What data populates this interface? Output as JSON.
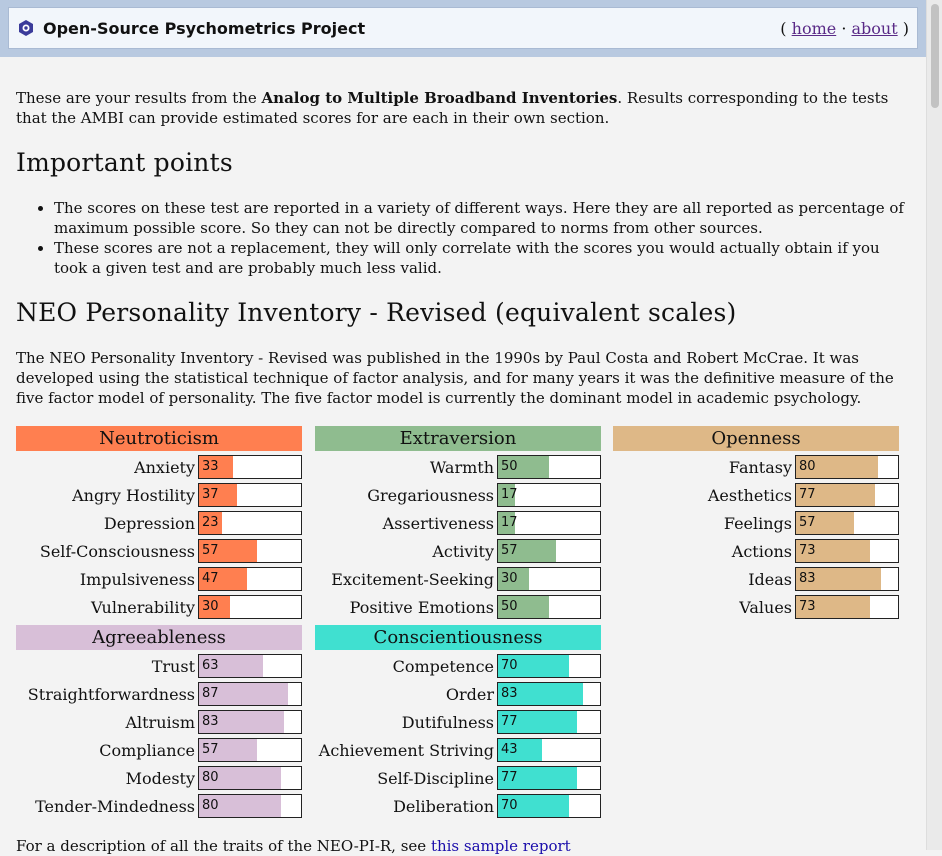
{
  "header": {
    "site_title": "Open-Source Psychometrics Project",
    "nav_open": "(",
    "nav_home": "home",
    "nav_sep": "·",
    "nav_about": "about",
    "nav_close": ")"
  },
  "intro": {
    "pre": "These are your results from the ",
    "bold": "Analog to Multiple Broadband Inventories",
    "post": ". Results corresponding to the tests that the AMBI can provide estimated scores for are each in their own section."
  },
  "important": {
    "heading": "Important points",
    "points": [
      "The scores on these test are reported in a variety of different ways. Here they are all reported as percentage of maximum possible score. So they can not be directly compared to norms from other sources.",
      "These scores are not a replacement, they will only correlate with the scores you would actually obtain if you took a given test and are probably much less valid."
    ]
  },
  "neo": {
    "heading": "NEO Personality Inventory - Revised (equivalent scales)",
    "description": "The NEO Personality Inventory - Revised was published in the 1990s by Paul Costa and Robert McCrae. It was developed using the statistical technique of factor analysis, and for many years it was the definitive measure of the five factor model of personality. The five factor model is currently the dominant model in academic psychology."
  },
  "panels": [
    {
      "name": "Neutroticism",
      "color": "#ff7f50",
      "facets": [
        {
          "label": "Anxiety",
          "value": 33
        },
        {
          "label": "Angry Hostility",
          "value": 37
        },
        {
          "label": "Depression",
          "value": 23
        },
        {
          "label": "Self-Consciousness",
          "value": 57
        },
        {
          "label": "Impulsiveness",
          "value": 47
        },
        {
          "label": "Vulnerability",
          "value": 30
        }
      ]
    },
    {
      "name": "Extraversion",
      "color": "#8fbc8f",
      "facets": [
        {
          "label": "Warmth",
          "value": 50
        },
        {
          "label": "Gregariousness",
          "value": 17
        },
        {
          "label": "Assertiveness",
          "value": 17
        },
        {
          "label": "Activity",
          "value": 57
        },
        {
          "label": "Excitement-Seeking",
          "value": 30
        },
        {
          "label": "Positive Emotions",
          "value": 50
        }
      ]
    },
    {
      "name": "Openness",
      "color": "#deb887",
      "facets": [
        {
          "label": "Fantasy",
          "value": 80
        },
        {
          "label": "Aesthetics",
          "value": 77
        },
        {
          "label": "Feelings",
          "value": 57
        },
        {
          "label": "Actions",
          "value": 73
        },
        {
          "label": "Ideas",
          "value": 83
        },
        {
          "label": "Values",
          "value": 73
        }
      ]
    },
    {
      "name": "Agreeableness",
      "color": "#d8bfd8",
      "facets": [
        {
          "label": "Trust",
          "value": 63
        },
        {
          "label": "Straightforwardness",
          "value": 87
        },
        {
          "label": "Altruism",
          "value": 83
        },
        {
          "label": "Compliance",
          "value": 57
        },
        {
          "label": "Modesty",
          "value": 80
        },
        {
          "label": "Tender-Mindedness",
          "value": 80
        }
      ]
    },
    {
      "name": "Conscientiousness",
      "color": "#40e0d0",
      "facets": [
        {
          "label": "Competence",
          "value": 70
        },
        {
          "label": "Order",
          "value": 83
        },
        {
          "label": "Dutifulness",
          "value": 77
        },
        {
          "label": "Achievement Striving",
          "value": 43
        },
        {
          "label": "Self-Discipline",
          "value": 77
        },
        {
          "label": "Deliberation",
          "value": 70
        }
      ]
    }
  ],
  "footer": {
    "text": "For a description of all the traits of the NEO-PI-R, see ",
    "link": "this sample report"
  }
}
